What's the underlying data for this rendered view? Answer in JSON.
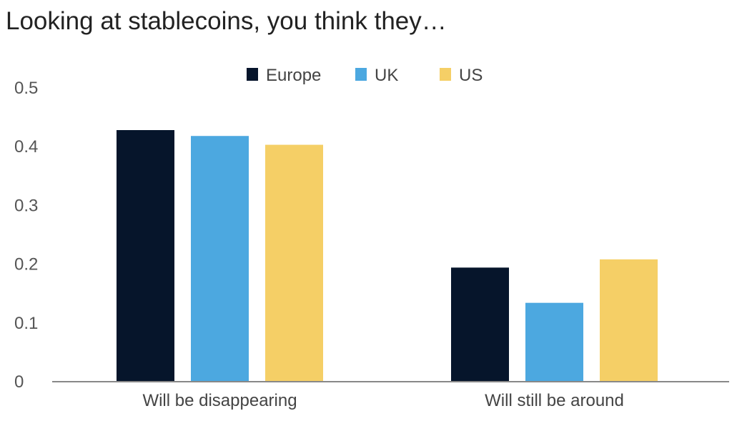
{
  "chart_data": {
    "type": "bar",
    "title": "Looking at stablecoins, you think they…",
    "categories": [
      "Will be disappearing",
      "Will still be around"
    ],
    "series": [
      {
        "name": "Europe",
        "color": "#06152b",
        "values": [
          0.427,
          0.193
        ]
      },
      {
        "name": "UK",
        "color": "#4ca8e0",
        "values": [
          0.417,
          0.133
        ]
      },
      {
        "name": "US",
        "color": "#f5cf66",
        "values": [
          0.402,
          0.207
        ]
      }
    ],
    "ylim": [
      0,
      0.5
    ],
    "yticks": [
      "0",
      "0.1",
      "0.2",
      "0.3",
      "0.4",
      "0.5"
    ],
    "xlabel": "",
    "ylabel": "",
    "grid": false,
    "legend": "top-center"
  }
}
